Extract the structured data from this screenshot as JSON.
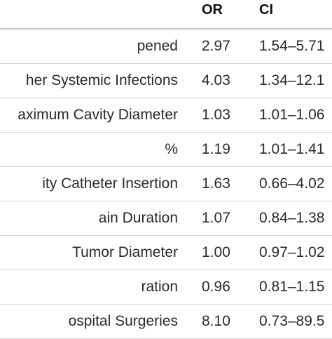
{
  "table": {
    "headers": {
      "name": "",
      "or": "OR",
      "ci": "CI"
    },
    "rows": [
      {
        "name": "pened",
        "or": "2.97",
        "ci": "1.54–5.71"
      },
      {
        "name": "her Systemic Infections",
        "or": "4.03",
        "ci": "1.34–12.1"
      },
      {
        "name": "aximum Cavity Diameter",
        "or": "1.03",
        "ci": "1.01–1.06"
      },
      {
        "name": "%",
        "or": "1.19",
        "ci": "1.01–1.41"
      },
      {
        "name": "ity Catheter Insertion",
        "or": "1.63",
        "ci": "0.66–4.02"
      },
      {
        "name": "ain Duration",
        "or": "1.07",
        "ci": "0.84–1.38"
      },
      {
        "name": "Tumor Diameter",
        "or": "1.00",
        "ci": "0.97–1.02"
      },
      {
        "name": "ration",
        "or": "0.96",
        "ci": "0.81–1.15"
      },
      {
        "name": "ospital Surgeries",
        "or": "8.10",
        "ci": "0.73–89.5"
      }
    ]
  }
}
